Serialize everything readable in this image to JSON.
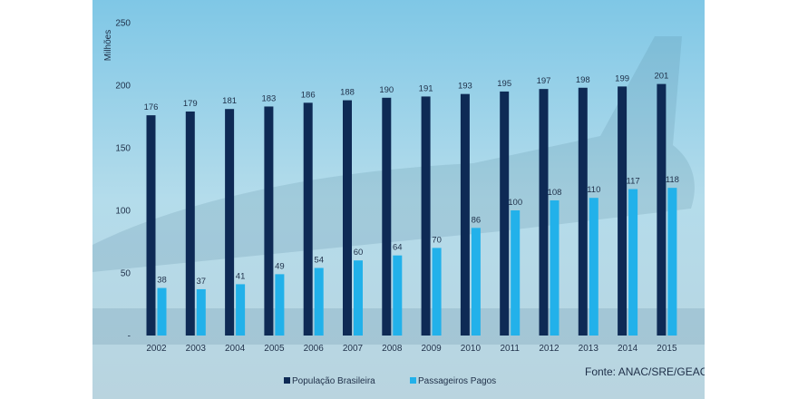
{
  "chart_data": {
    "type": "bar",
    "title": "",
    "xlabel": "",
    "ylabel": "Milhões",
    "ylim": [
      0,
      250
    ],
    "yticks": [
      "-",
      "50",
      "100",
      "150",
      "200",
      "250"
    ],
    "grid": false,
    "legend_position": "bottom",
    "categories": [
      "2002",
      "2003",
      "2004",
      "2005",
      "2006",
      "2007",
      "2008",
      "2009",
      "2010",
      "2011",
      "2012",
      "2013",
      "2014",
      "2015"
    ],
    "series": [
      {
        "name": "População Brasileira",
        "color": "#0e2a55",
        "values": [
          176,
          179,
          181,
          183,
          186,
          188,
          190,
          191,
          193,
          195,
          197,
          198,
          199,
          201
        ]
      },
      {
        "name": "Passageiros Pagos",
        "color": "#22b1ea",
        "values": [
          38,
          37,
          41,
          49,
          54,
          60,
          64,
          70,
          86,
          100,
          108,
          110,
          117,
          118
        ]
      }
    ],
    "source": "Fonte: ANAC/SRE/GEAC"
  },
  "colors": {
    "background": "#a9d6ea",
    "text": "#1e2f48"
  }
}
